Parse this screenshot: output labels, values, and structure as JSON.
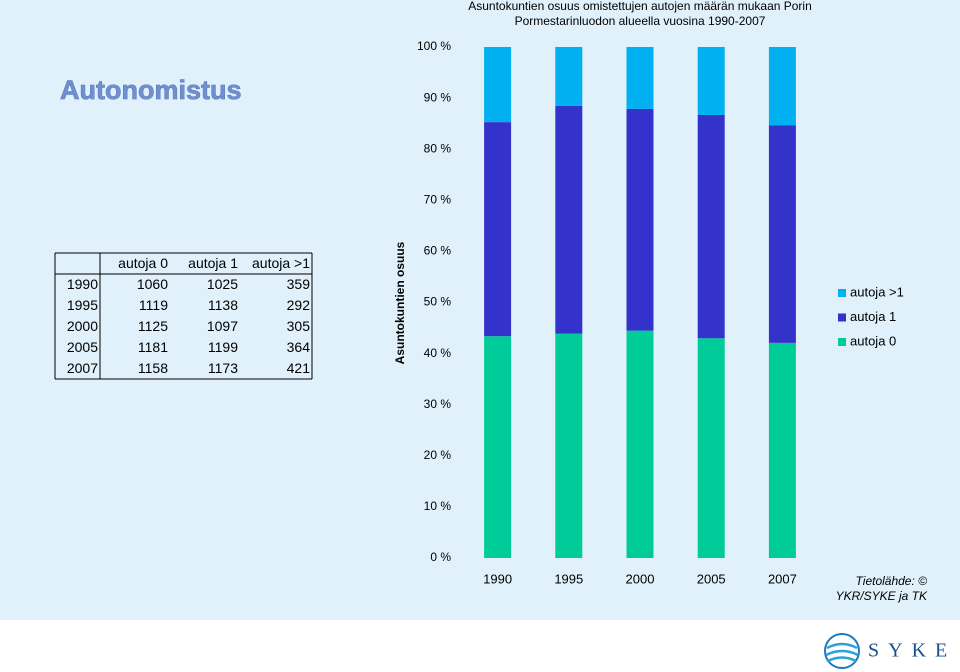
{
  "slide_title": "Autonomistus",
  "table": {
    "header": [
      "autoja 0",
      "autoja 1",
      "autoja >1"
    ],
    "rows": [
      [
        1990,
        1060,
        1025,
        359
      ],
      [
        1995,
        1119,
        1138,
        292
      ],
      [
        2000,
        1125,
        1097,
        305
      ],
      [
        2005,
        1181,
        1199,
        364
      ],
      [
        2007,
        1158,
        1173,
        421
      ]
    ]
  },
  "chart_data": {
    "type": "stacked_bar",
    "title": [
      "Asuntokuntien osuus omistettujen autojen määrän mukaan Porin",
      "Pormestarinluodon alueella vuosina 1990-2007"
    ],
    "y_label": "Asuntokuntien osuus",
    "categories": [
      "1990",
      "1995",
      "2000",
      "2005",
      "2007"
    ],
    "series": [
      {
        "name": "autoja 0",
        "color": "#00cc99",
        "values": [
          43.4,
          43.9,
          44.5,
          43.0,
          42.1
        ]
      },
      {
        "name": "autoja 1",
        "color": "#3333cc",
        "values": [
          41.9,
          44.6,
          43.4,
          43.7,
          42.6
        ]
      },
      {
        "name": "autoja >1",
        "color": "#00b0f0",
        "values": [
          14.7,
          11.5,
          12.1,
          13.3,
          15.3
        ]
      }
    ],
    "ylim": [
      0,
      100
    ],
    "yticks": [
      {
        "value": 0,
        "label": "0 %"
      },
      {
        "value": 10,
        "label": "10 %"
      },
      {
        "value": 20,
        "label": "20 %"
      },
      {
        "value": 30,
        "label": "30 %"
      },
      {
        "value": 40,
        "label": "40 %"
      },
      {
        "value": 50,
        "label": "50 %"
      },
      {
        "value": 60,
        "label": "60 %"
      },
      {
        "value": 70,
        "label": "70 %"
      },
      {
        "value": 80,
        "label": "80 %"
      },
      {
        "value": 90,
        "label": "90 %"
      },
      {
        "value": 100,
        "label": "100 %"
      }
    ],
    "legend": "right"
  },
  "source": [
    "Tietolähde: ©",
    "YKR/SYKE ja TK"
  ],
  "logo": "SYKE"
}
